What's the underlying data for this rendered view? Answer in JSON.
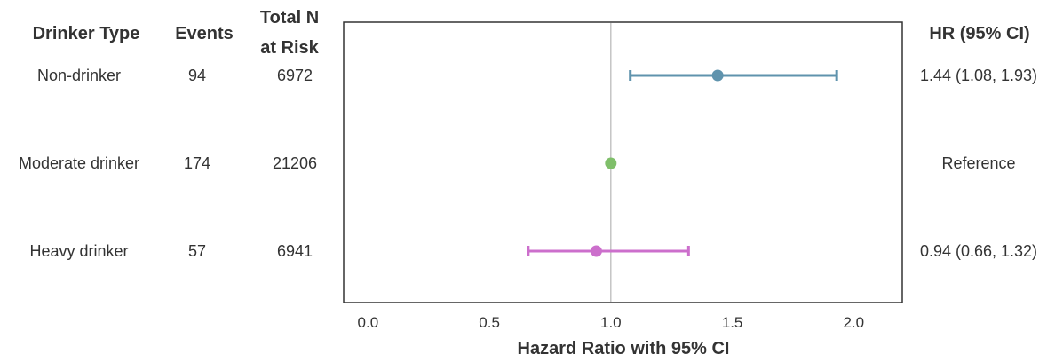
{
  "table": {
    "headers": {
      "drinker_type": "Drinker Type",
      "events": "Events",
      "total_n_line1": "Total N",
      "total_n_line2": "at Risk",
      "hr": "HR (95% CI)"
    },
    "rows": [
      {
        "label": "Non-drinker",
        "events": "94",
        "n": "6972",
        "hr_text": "1.44 (1.08, 1.93)"
      },
      {
        "label": "Moderate drinker",
        "events": "174",
        "n": "21206",
        "hr_text": "Reference"
      },
      {
        "label": "Heavy drinker",
        "events": "57",
        "n": "6941",
        "hr_text": "0.94 (0.66, 1.32)"
      }
    ]
  },
  "chart_data": {
    "type": "scatter",
    "subtype": "forest",
    "xlabel": "Hazard Ratio with 95% CI",
    "xlim": [
      -0.1,
      2.2
    ],
    "xticks": [
      0.0,
      0.5,
      1.0,
      1.5,
      2.0
    ],
    "xtick_labels": [
      "0.0",
      "0.5",
      "1.0",
      "1.5",
      "2.0"
    ],
    "reference_line": 1.0,
    "grid": false,
    "series": [
      {
        "category": "Non-drinker",
        "hr": 1.44,
        "lower": 1.08,
        "upper": 1.93,
        "color": "#5f93ad"
      },
      {
        "category": "Moderate drinker",
        "hr": 1.0,
        "lower": null,
        "upper": null,
        "color": "#7fbf6a"
      },
      {
        "category": "Heavy drinker",
        "hr": 0.94,
        "lower": 0.66,
        "upper": 1.32,
        "color": "#cc6fcc"
      }
    ]
  }
}
